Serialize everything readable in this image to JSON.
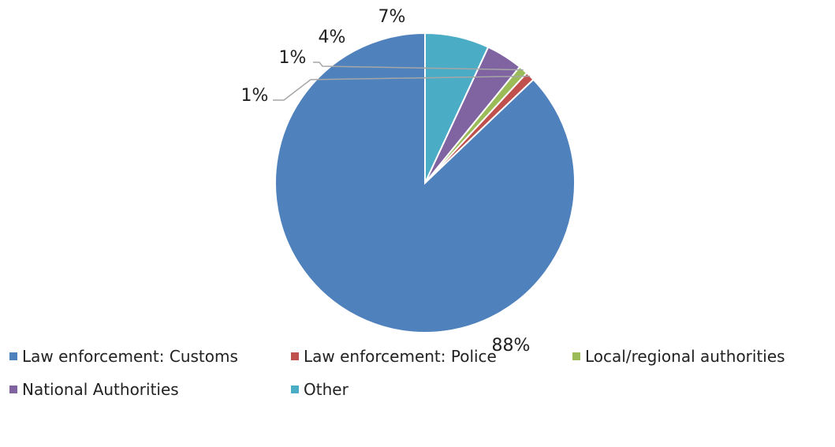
{
  "chart_data": {
    "type": "pie",
    "title": "",
    "categories": [
      "Law enforcement: Customs",
      "Law enforcement: Police",
      "Local/regional authorities",
      "National Authorities",
      "Other"
    ],
    "values": [
      88,
      1,
      1,
      4,
      7
    ],
    "labels": [
      "88%",
      "1%",
      "1%",
      "4%",
      "7%"
    ],
    "colors": [
      "#4f81bd",
      "#c0504d",
      "#9bbb59",
      "#8064a2",
      "#4bacc6"
    ],
    "legend_position": "bottom"
  }
}
